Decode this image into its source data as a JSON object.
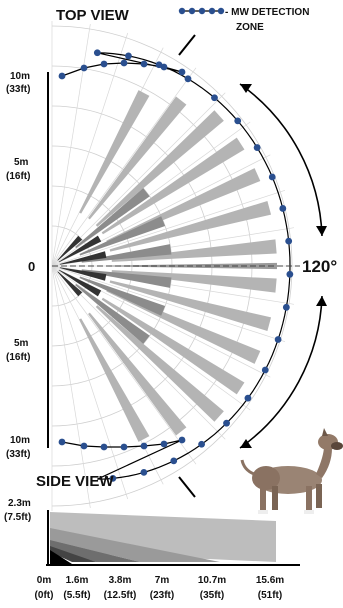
{
  "top_view": {
    "title": "TOP VIEW",
    "legend": {
      "label_line1": "- MW DETECTION",
      "label_line2": "ZONE"
    },
    "y_labels": {
      "upper_m": "10m",
      "upper_ft": "(33ft)",
      "mid_upper_m": "5m",
      "mid_upper_ft": "(16ft)",
      "zero": "0",
      "mid_lower_m": "5m",
      "mid_lower_ft": "(16ft)",
      "lower_m": "10m",
      "lower_ft": "(33ft)"
    },
    "angle_label": "120°"
  },
  "side_view": {
    "title": "SIDE VIEW",
    "height_m": "2.3m",
    "height_ft": "(7.5ft)",
    "distances": [
      {
        "m": "0m",
        "ft": "(0ft)"
      },
      {
        "m": "1.6m",
        "ft": "(5.5ft)"
      },
      {
        "m": "3.8m",
        "ft": "(12.5ft)"
      },
      {
        "m": "7m",
        "ft": "(23ft)"
      },
      {
        "m": "10.7m",
        "ft": "(35ft)"
      },
      {
        "m": "15.6m",
        "ft": "(51ft)"
      }
    ]
  },
  "colors": {
    "marker": "#2a4f8f",
    "beam_light": "#b4b4b4",
    "beam_mid": "#8c8c8c",
    "beam_dark": "#333333"
  }
}
